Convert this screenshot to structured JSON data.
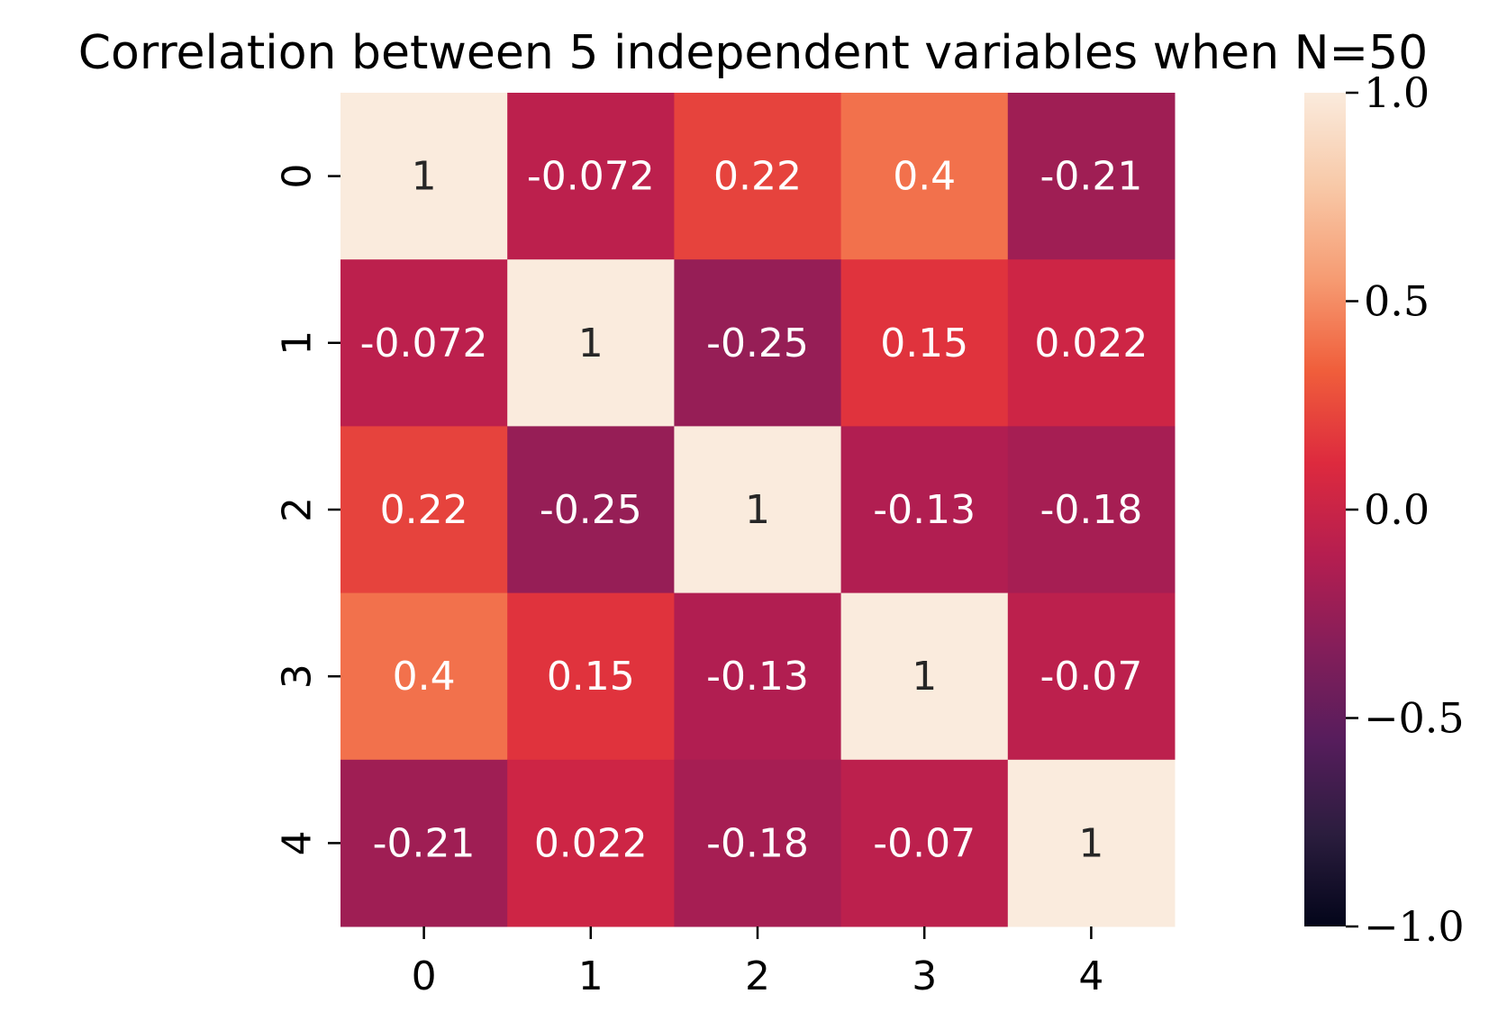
{
  "chart_data": {
    "type": "heatmap",
    "title": "Correlation between 5 independent variables when N=50",
    "x_categories": [
      "0",
      "1",
      "2",
      "3",
      "4"
    ],
    "y_categories": [
      "0",
      "1",
      "2",
      "3",
      "4"
    ],
    "values": [
      [
        1,
        -0.072,
        0.22,
        0.4,
        -0.21
      ],
      [
        -0.072,
        1,
        -0.25,
        0.15,
        0.022
      ],
      [
        0.22,
        -0.25,
        1,
        -0.13,
        -0.18
      ],
      [
        0.4,
        0.15,
        -0.13,
        1,
        -0.07
      ],
      [
        -0.21,
        0.022,
        -0.18,
        -0.07,
        1
      ]
    ],
    "cell_labels": [
      [
        "1",
        "-0.072",
        "0.22",
        "0.4",
        "-0.21"
      ],
      [
        "-0.072",
        "1",
        "-0.25",
        "0.15",
        "0.022"
      ],
      [
        "0.22",
        "-0.25",
        "1",
        "-0.13",
        "-0.18"
      ],
      [
        "0.4",
        "0.15",
        "-0.13",
        "1",
        "-0.07"
      ],
      [
        "-0.21",
        "0.022",
        "-0.18",
        "-0.07",
        "1"
      ]
    ],
    "colorbar": {
      "range": [
        -1.0,
        1.0
      ],
      "ticks": [
        1.0,
        0.5,
        0.0,
        -0.5,
        -1.0
      ],
      "tick_labels": [
        "1.0",
        "0.5",
        "0.0",
        "−0.5",
        "−1.0"
      ],
      "colormap": "rocket",
      "stops": [
        "#03051a",
        "#2b1d3e",
        "#561d5c",
        "#841e5a",
        "#b51e50",
        "#dd2a3e",
        "#f05e3b",
        "#f69c73",
        "#f8c9a8",
        "#faebdd"
      ]
    },
    "xlabel": "",
    "ylabel": "",
    "grid": false
  }
}
